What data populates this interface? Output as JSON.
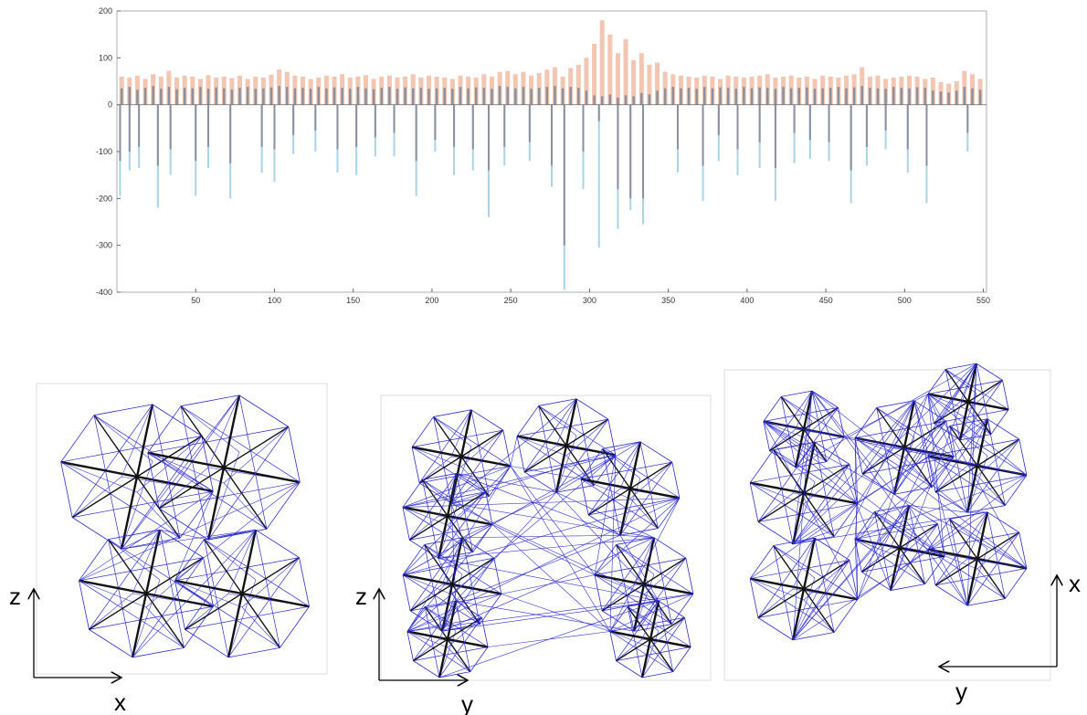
{
  "chart_data": {
    "type": "bar",
    "xlim": [
      0,
      552
    ],
    "xticks": [
      50,
      100,
      150,
      200,
      250,
      300,
      350,
      400,
      450,
      500,
      550
    ],
    "ylim": [
      -400,
      200
    ],
    "yticks": [
      -400,
      -300,
      -200,
      -100,
      0,
      100,
      200
    ],
    "x": [
      3,
      8,
      13,
      18,
      23,
      28,
      33,
      38,
      43,
      48,
      53,
      58,
      63,
      68,
      73,
      78,
      83,
      88,
      93,
      98,
      103,
      108,
      113,
      118,
      123,
      128,
      133,
      138,
      143,
      148,
      153,
      158,
      163,
      168,
      173,
      178,
      183,
      188,
      193,
      198,
      203,
      208,
      213,
      218,
      223,
      228,
      233,
      238,
      243,
      248,
      253,
      258,
      263,
      268,
      273,
      278,
      283,
      288,
      293,
      298,
      303,
      308,
      313,
      318,
      323,
      328,
      333,
      338,
      343,
      348,
      353,
      358,
      363,
      368,
      373,
      378,
      383,
      388,
      393,
      398,
      403,
      408,
      413,
      418,
      423,
      428,
      433,
      438,
      443,
      448,
      453,
      458,
      463,
      468,
      473,
      478,
      483,
      488,
      493,
      498,
      503,
      508,
      513,
      518,
      523,
      528,
      533,
      538,
      543,
      548
    ],
    "series": [
      {
        "color": "#f2c6b0",
        "values": [
          60,
          58,
          62,
          55,
          65,
          60,
          72,
          58,
          62,
          60,
          55,
          63,
          58,
          60,
          57,
          62,
          55,
          60,
          58,
          64,
          75,
          70,
          62,
          60,
          55,
          58,
          62,
          60,
          65,
          58,
          60,
          63,
          55,
          60,
          62,
          58,
          60,
          65,
          58,
          62,
          60,
          58,
          55,
          62,
          60,
          58,
          65,
          60,
          70,
          72,
          65,
          70,
          62,
          68,
          75,
          80,
          60,
          78,
          85,
          100,
          130,
          180,
          150,
          110,
          140,
          95,
          110,
          85,
          90,
          70,
          65,
          62,
          60,
          58,
          62,
          60,
          55,
          62,
          60,
          58,
          60,
          62,
          65,
          58,
          60,
          62,
          58,
          60,
          55,
          62,
          60,
          58,
          62,
          65,
          80,
          60,
          62,
          55,
          58,
          60,
          62,
          60,
          55,
          58,
          48,
          45,
          50,
          72,
          65,
          55
        ]
      },
      {
        "color": "#8c8f9e",
        "values": [
          35,
          38,
          32,
          36,
          40,
          34,
          38,
          33,
          36,
          35,
          38,
          34,
          37,
          35,
          32,
          36,
          38,
          34,
          35,
          37,
          40,
          38,
          35,
          36,
          34,
          38,
          35,
          37,
          36,
          34,
          38,
          35,
          33,
          36,
          38,
          34,
          37,
          35,
          36,
          34,
          35,
          36,
          34,
          38,
          35,
          37,
          36,
          34,
          40,
          38,
          35,
          38,
          34,
          36,
          38,
          40,
          35,
          38,
          36,
          30,
          20,
          18,
          22,
          15,
          20,
          18,
          25,
          22,
          30,
          35,
          38,
          35,
          36,
          34,
          38,
          35,
          37,
          36,
          34,
          38,
          35,
          37,
          36,
          34,
          38,
          35,
          36,
          37,
          34,
          35,
          36,
          38,
          35,
          37,
          40,
          36,
          35,
          34,
          38,
          36,
          35,
          37,
          36,
          30,
          28,
          26,
          30,
          38,
          35,
          32
        ]
      },
      {
        "color": "#a9d4e6",
        "x": [
          2,
          8,
          14,
          26,
          34,
          50,
          58,
          72,
          92,
          100,
          112,
          126,
          140,
          152,
          164,
          176,
          190,
          202,
          214,
          226,
          236,
          246,
          262,
          276,
          284,
          296,
          306,
          318,
          326,
          334,
          356,
          372,
          382,
          394,
          408,
          418,
          430,
          440,
          452,
          466,
          476,
          488,
          502,
          514,
          540
        ],
        "values": [
          -195,
          -140,
          -135,
          -220,
          -150,
          -195,
          -135,
          -200,
          -145,
          -165,
          -105,
          -100,
          -145,
          -150,
          -110,
          -110,
          -195,
          -100,
          -150,
          -140,
          -240,
          -130,
          -120,
          -175,
          -395,
          -180,
          -305,
          -265,
          -225,
          -255,
          -145,
          -205,
          -120,
          -150,
          -135,
          -205,
          -125,
          -115,
          -120,
          -210,
          -130,
          -95,
          -145,
          -210,
          -100
        ]
      },
      {
        "color": "#8c8f9e",
        "x": [
          2,
          8,
          14,
          26,
          34,
          50,
          58,
          72,
          92,
          100,
          112,
          126,
          140,
          152,
          164,
          176,
          190,
          202,
          214,
          226,
          236,
          246,
          262,
          276,
          284,
          296,
          306,
          318,
          326,
          334,
          356,
          372,
          382,
          394,
          408,
          418,
          430,
          440,
          452,
          466,
          476,
          488,
          502,
          514,
          540
        ],
        "values": [
          -120,
          -100,
          -90,
          -130,
          -95,
          -120,
          -90,
          -125,
          -90,
          -95,
          -65,
          -55,
          -95,
          -90,
          -70,
          -60,
          -120,
          -75,
          -90,
          -95,
          -140,
          -90,
          -80,
          -130,
          -300,
          -100,
          -35,
          -180,
          -200,
          -200,
          -95,
          -130,
          -65,
          -95,
          -80,
          -135,
          -60,
          -75,
          -80,
          -140,
          -90,
          -55,
          -95,
          -130,
          -60
        ]
      }
    ]
  },
  "panels": [
    {
      "vertical": "z",
      "horizontal": "x"
    },
    {
      "vertical": "z",
      "horizontal": "y"
    },
    {
      "vertical": "x",
      "horizontal": "y"
    }
  ]
}
